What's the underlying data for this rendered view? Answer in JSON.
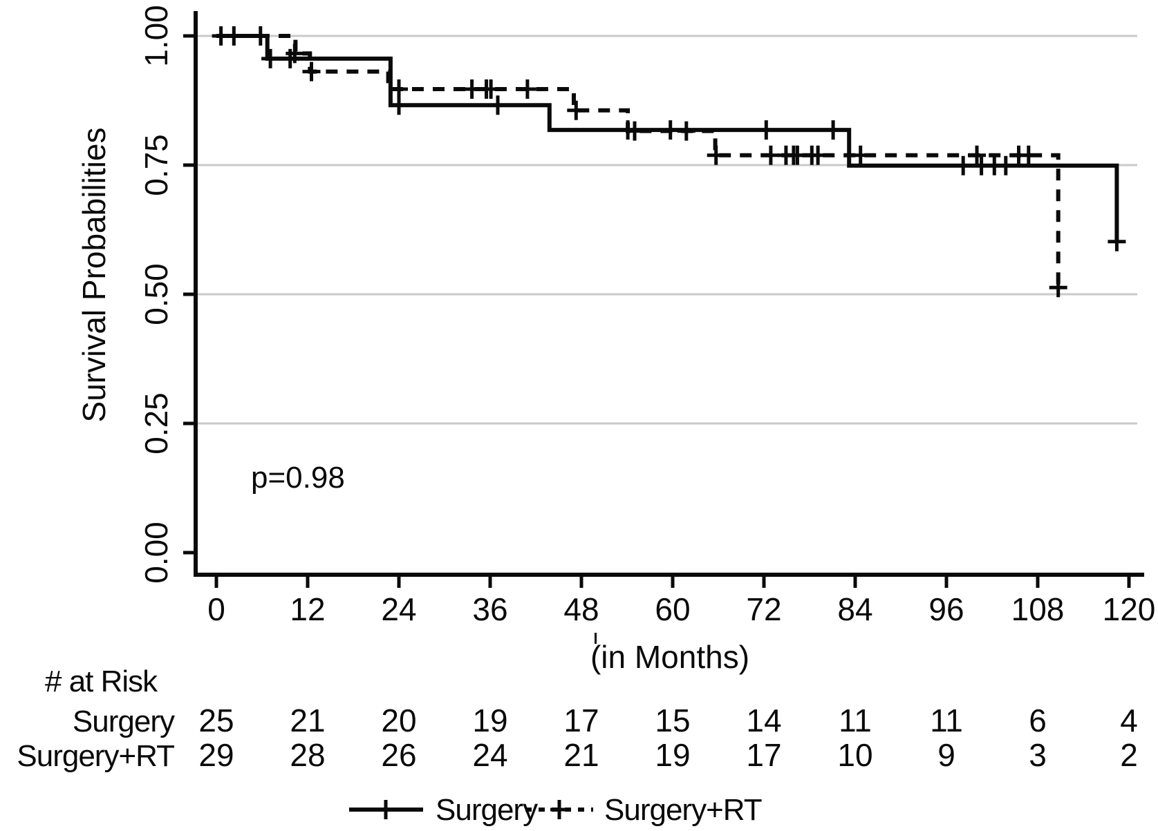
{
  "figure": {
    "p_value": "p=0.98",
    "y_axis": {
      "title": "Survival Probabilities"
    },
    "x_axis": {
      "title": "(in Months)"
    }
  },
  "risk_table": {
    "header": "# at Risk",
    "rows": [
      {
        "label": "Surgery",
        "values": [
          "25",
          "21",
          "20",
          "19",
          "17",
          "15",
          "14",
          "11",
          "11",
          "6",
          "4"
        ]
      },
      {
        "label": "Surgery+RT",
        "values": [
          "29",
          "28",
          "26",
          "24",
          "21",
          "19",
          "17",
          "10",
          "9",
          "3",
          "2"
        ]
      }
    ]
  },
  "legend": [
    {
      "label": "Surgery",
      "style": "solid"
    },
    {
      "label": "Surgery+RT",
      "style": "dashed"
    }
  ],
  "colors": {
    "line": "#0a0a0a",
    "grid": "#c9c9c9",
    "background": "#ffffff"
  },
  "chart_data": {
    "type": "line",
    "subtype": "kaplan-meier-step",
    "title": "",
    "xlabel": "(in Months)",
    "ylabel": "Survival Probabilities",
    "xlim": [
      0,
      120
    ],
    "ylim": [
      0.0,
      1.0
    ],
    "x_ticks": [
      0,
      12,
      24,
      36,
      48,
      60,
      72,
      84,
      96,
      108,
      120
    ],
    "y_ticks": [
      1.0,
      0.75,
      0.5,
      0.25,
      0.0
    ],
    "grid": "horizontal-only",
    "legend_position": "bottom",
    "annotation": {
      "text": "p=0.98",
      "x": 5,
      "y": 0.13
    },
    "series": [
      {
        "name": "Surgery",
        "line": "solid",
        "steps": [
          [
            0,
            1.0
          ],
          [
            6.7,
            0.956
          ],
          [
            22.9,
            0.866
          ],
          [
            43.8,
            0.818
          ],
          [
            83.2,
            0.749
          ],
          [
            118.4,
            0.602
          ]
        ],
        "censors": [
          [
            0.6,
            1.0
          ],
          [
            2.3,
            1.0
          ],
          [
            5.8,
            1.0
          ],
          [
            7.1,
            0.956
          ],
          [
            9.7,
            0.956
          ],
          [
            24,
            0.866
          ],
          [
            37,
            0.866
          ],
          [
            54.1,
            0.818
          ],
          [
            59.7,
            0.818
          ],
          [
            72.3,
            0.818
          ],
          [
            81.1,
            0.818
          ],
          [
            98.2,
            0.749
          ],
          [
            100.6,
            0.749
          ],
          [
            102.3,
            0.749
          ],
          [
            103.8,
            0.749
          ],
          [
            118.4,
            0.602
          ]
        ]
      },
      {
        "name": "Surgery+RT",
        "line": "dashed",
        "steps": [
          [
            0,
            1.0
          ],
          [
            10.4,
            0.966
          ],
          [
            12.3,
            0.931
          ],
          [
            22.6,
            0.897
          ],
          [
            47,
            0.856
          ],
          [
            54.1,
            0.816
          ],
          [
            65.6,
            0.769
          ],
          [
            110.7,
            0.513
          ]
        ],
        "censors": [
          [
            10.3,
            0.966
          ],
          [
            12.5,
            0.931
          ],
          [
            24,
            0.897
          ],
          [
            33.6,
            0.897
          ],
          [
            35.5,
            0.897
          ],
          [
            36.1,
            0.897
          ],
          [
            40.9,
            0.897
          ],
          [
            47.3,
            0.856
          ],
          [
            55,
            0.816
          ],
          [
            61.8,
            0.816
          ],
          [
            65.7,
            0.769
          ],
          [
            72.9,
            0.769
          ],
          [
            74.9,
            0.769
          ],
          [
            75.9,
            0.769
          ],
          [
            76.4,
            0.769
          ],
          [
            78.3,
            0.769
          ],
          [
            79.1,
            0.769
          ],
          [
            84.7,
            0.769
          ],
          [
            100,
            0.769
          ],
          [
            105.5,
            0.769
          ],
          [
            106.8,
            0.769
          ],
          [
            110.7,
            0.513
          ]
        ]
      }
    ],
    "risk_table": {
      "header": "# at Risk",
      "times": [
        0,
        12,
        24,
        36,
        48,
        60,
        72,
        84,
        96,
        108,
        120
      ],
      "rows": [
        {
          "name": "Surgery",
          "counts": [
            25,
            21,
            20,
            19,
            17,
            15,
            14,
            11,
            11,
            6,
            4
          ]
        },
        {
          "name": "Surgery+RT",
          "counts": [
            29,
            28,
            26,
            24,
            21,
            19,
            17,
            10,
            9,
            3,
            2
          ]
        }
      ]
    }
  }
}
